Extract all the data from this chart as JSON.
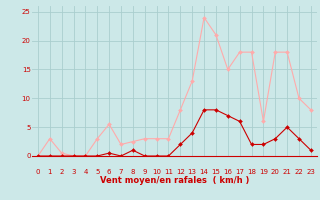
{
  "x": [
    0,
    1,
    2,
    3,
    4,
    5,
    6,
    7,
    8,
    9,
    10,
    11,
    12,
    13,
    14,
    15,
    16,
    17,
    18,
    19,
    20,
    21,
    22,
    23
  ],
  "vent_moyen": [
    0,
    0,
    0,
    0,
    0,
    0,
    0.5,
    0,
    1,
    0,
    0,
    0,
    2,
    4,
    8,
    8,
    7,
    6,
    2,
    2,
    3,
    5,
    3,
    1
  ],
  "rafales": [
    0,
    3,
    0.5,
    0,
    0,
    3,
    5.5,
    2,
    2.5,
    3,
    3,
    3,
    8,
    13,
    24,
    21,
    15,
    18,
    18,
    6,
    18,
    18,
    10,
    8
  ],
  "bg_color": "#cce8e8",
  "grid_color": "#aacece",
  "line_moyen_color": "#cc0000",
  "line_rafales_color": "#ffaaaa",
  "xlabel": "Vent moyen/en rafales  ( km/h )",
  "xlabel_color": "#cc0000",
  "yticks": [
    0,
    5,
    10,
    15,
    20,
    25
  ],
  "xticks": [
    0,
    1,
    2,
    3,
    4,
    5,
    6,
    7,
    8,
    9,
    10,
    11,
    12,
    13,
    14,
    15,
    16,
    17,
    18,
    19,
    20,
    21,
    22,
    23
  ],
  "ylim": [
    0,
    26
  ],
  "xlim": [
    -0.5,
    23.5
  ],
  "tick_fontsize": 5.0,
  "xlabel_fontsize": 6.0,
  "arrow_angles": [
    225,
    225,
    225,
    225,
    225,
    225,
    225,
    270,
    225,
    270,
    270,
    270,
    270,
    270,
    270,
    270,
    270,
    270,
    270,
    270,
    270,
    270,
    270,
    270
  ]
}
